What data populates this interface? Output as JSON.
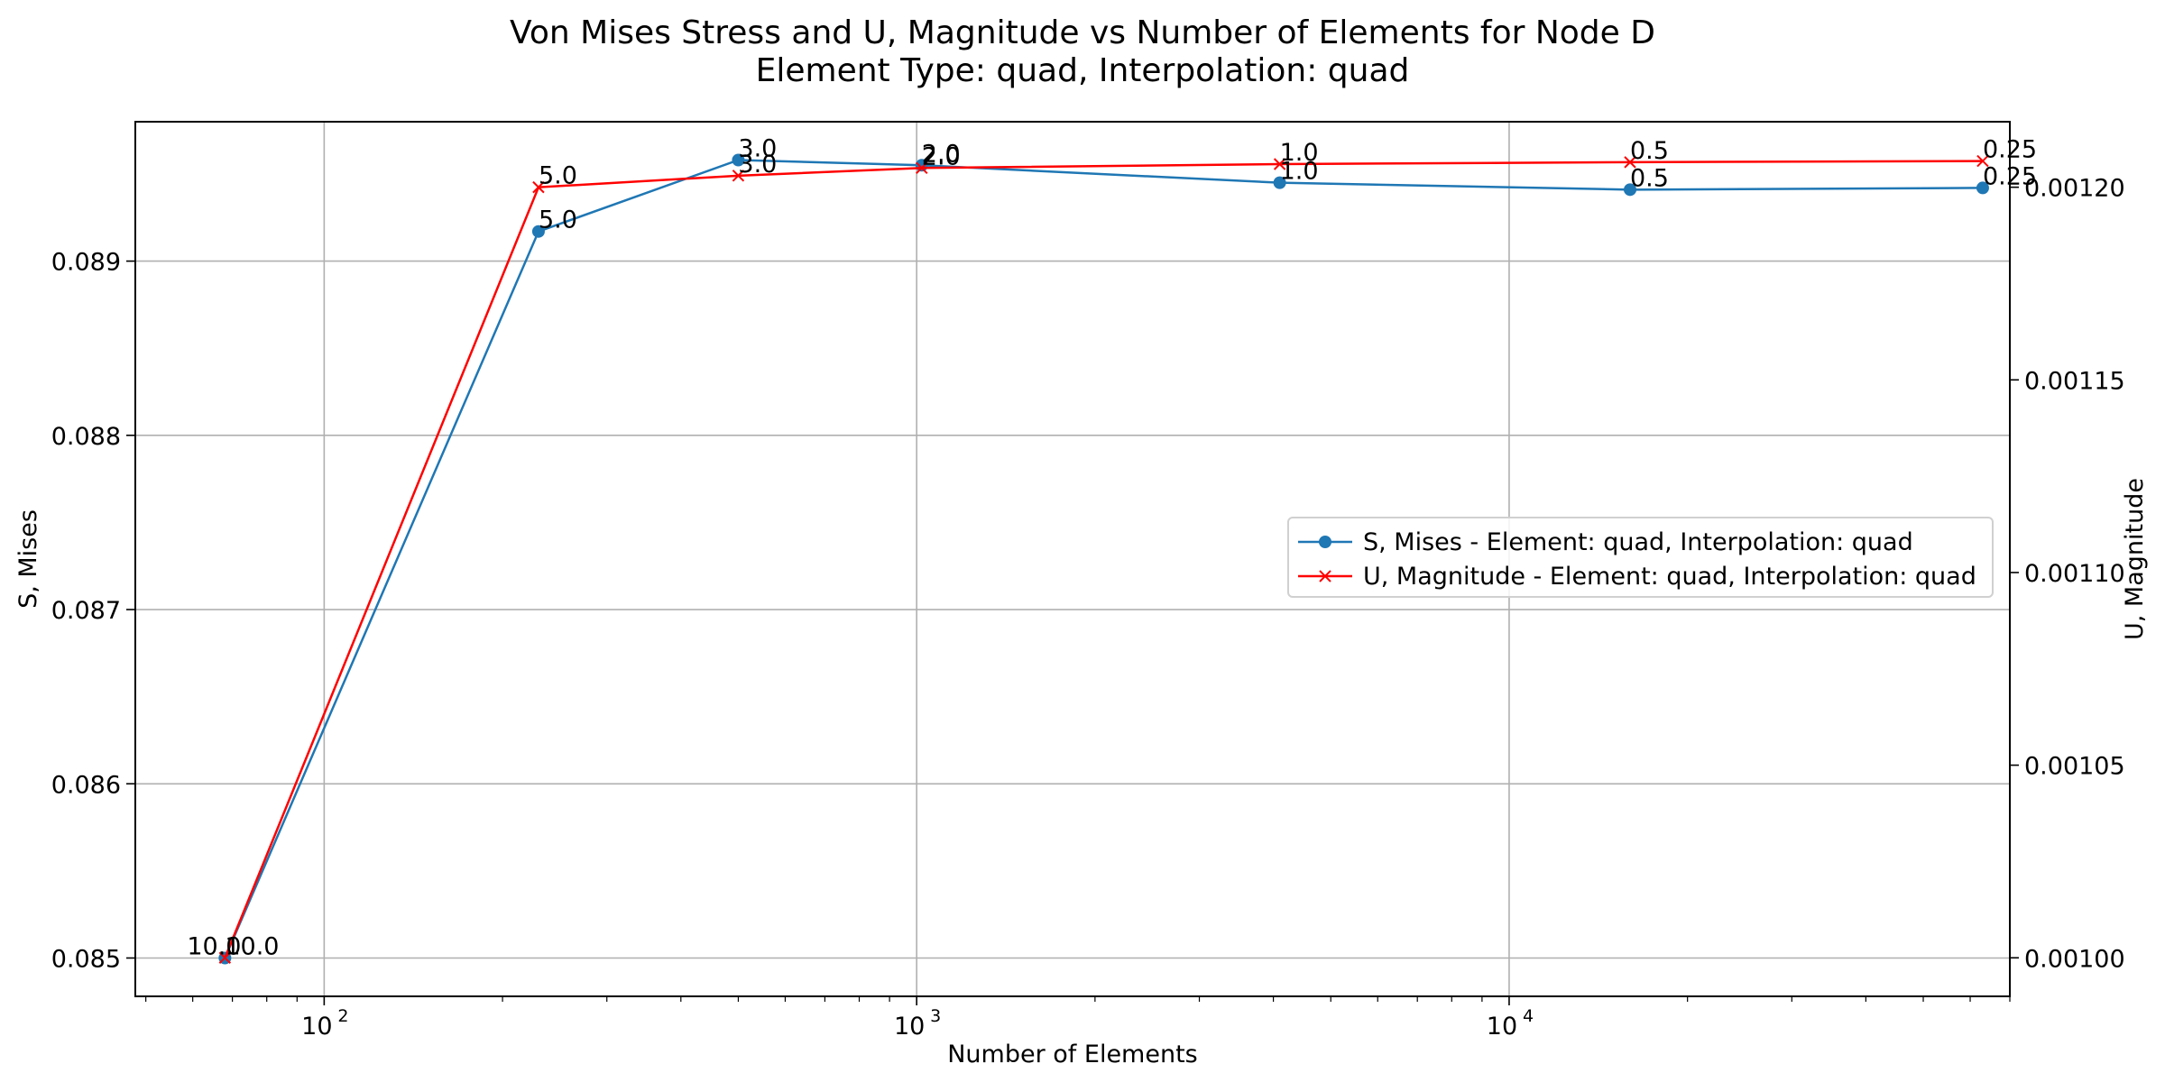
{
  "chart_data": {
    "type": "line",
    "title": "Von Mises Stress and U, Magnitude vs Number of Elements for Node D",
    "subtitle": "Element Type: quad, Interpolation: quad",
    "xlabel": "Number of Elements",
    "ylabel_left": "S, Mises",
    "ylabel_right": "U, Magnitude",
    "x_scale": "log",
    "xlim": [
      48,
      70000
    ],
    "ylim_left": [
      0.08478,
      0.0898
    ],
    "ylim_right": [
      0.00099,
      0.001217
    ],
    "x_ticks": [
      {
        "value": 100,
        "label": "10",
        "exp": "2"
      },
      {
        "value": 1000,
        "label": "10",
        "exp": "3"
      },
      {
        "value": 10000,
        "label": "10",
        "exp": "4"
      }
    ],
    "y_ticks_left": [
      "0.085",
      "0.086",
      "0.087",
      "0.088",
      "0.089"
    ],
    "y_tick_values_left": [
      0.085,
      0.086,
      0.087,
      0.088,
      0.089
    ],
    "y_ticks_right": [
      "0.00100",
      "0.00105",
      "0.00110",
      "0.00115",
      "0.00120"
    ],
    "y_tick_values_right": [
      0.001,
      0.00105,
      0.0011,
      0.00115,
      0.0012
    ],
    "grid": true,
    "legend_position": "center-right",
    "series": [
      {
        "name": "S, Mises - Element: quad, Interpolation: quad",
        "axis": "left",
        "color": "#1f77b4",
        "marker": "circle",
        "x": [
          68,
          230,
          500,
          1020,
          4100,
          16000,
          63000
        ],
        "y": [
          0.085,
          0.08917,
          0.08958,
          0.08955,
          0.08945,
          0.08941,
          0.08942
        ],
        "point_labels": [
          "10.0",
          "5.0",
          "3.0",
          "2.0",
          "1.0",
          "0.5",
          "0.25"
        ]
      },
      {
        "name": "U, Magnitude - Element: quad, Interpolation: quad",
        "axis": "right",
        "color": "#ff0000",
        "marker": "x",
        "x": [
          68,
          230,
          500,
          1020,
          4100,
          16000,
          63000
        ],
        "y": [
          0.001,
          0.0012,
          0.001203,
          0.001205,
          0.001206,
          0.0012065,
          0.0012068
        ],
        "point_labels": [
          "10.0",
          "5.0",
          "3.0",
          "2.0",
          "1.0",
          "0.5",
          "0.25"
        ]
      }
    ]
  }
}
